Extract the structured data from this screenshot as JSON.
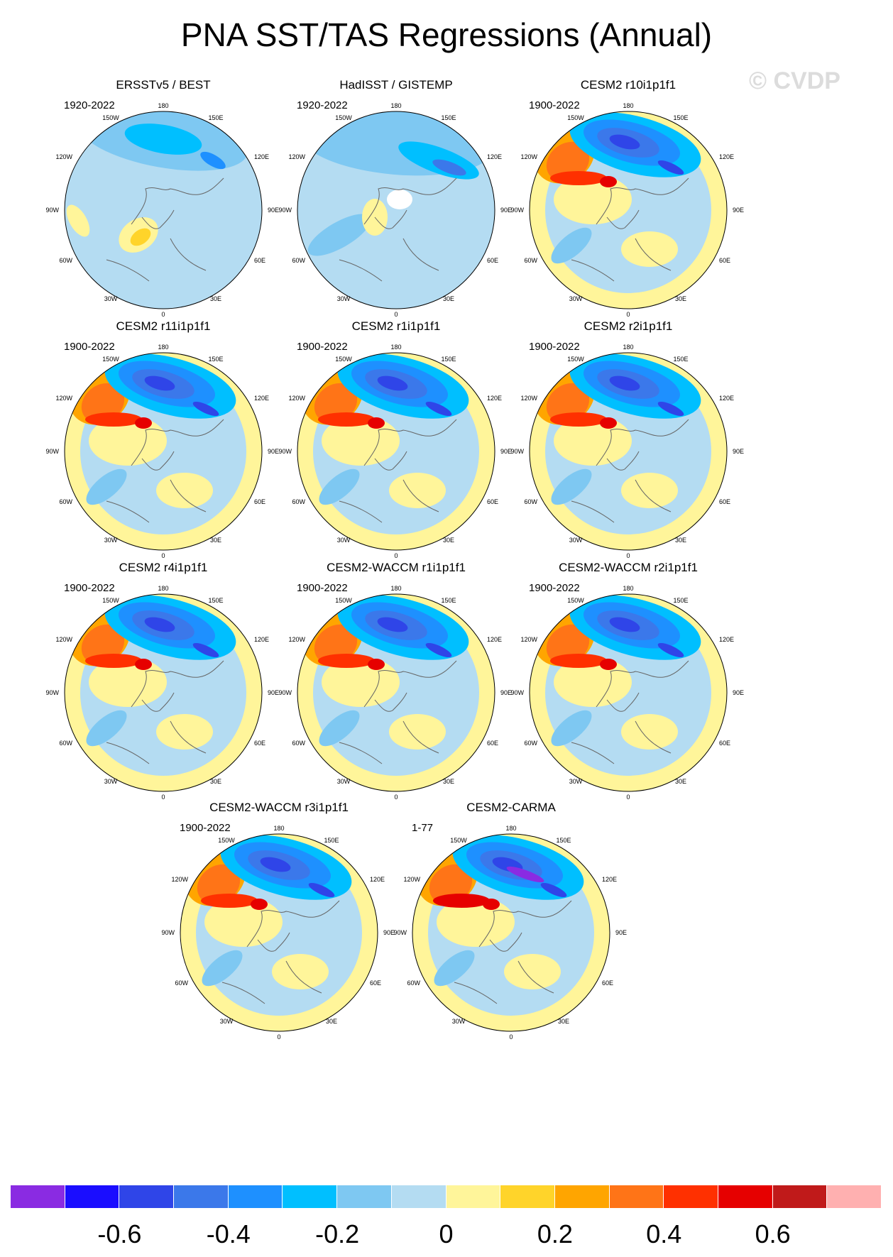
{
  "title": "PNA SST/TAS Regressions (Annual)",
  "watermark": "© CVDP",
  "lon_labels": [
    "180",
    "150E",
    "120E",
    "90E",
    "60E",
    "30E",
    "0",
    "30W",
    "60W",
    "90W",
    "120W",
    "150W"
  ],
  "panels": [
    {
      "title": "ERSSTv5 / BEST",
      "period": "1920-2022",
      "style": "obs1"
    },
    {
      "title": "HadISST / GISTEMP",
      "period": "1920-2022",
      "style": "obs2"
    },
    {
      "title": "CESM2 r10i1p1f1",
      "period": "1900-2022",
      "style": "model"
    },
    {
      "title": "CESM2 r11i1p1f1",
      "period": "1900-2022",
      "style": "model"
    },
    {
      "title": "CESM2 r1i1p1f1",
      "period": "1900-2022",
      "style": "model"
    },
    {
      "title": "CESM2 r2i1p1f1",
      "period": "1900-2022",
      "style": "model"
    },
    {
      "title": "CESM2 r4i1p1f1",
      "period": "1900-2022",
      "style": "model"
    },
    {
      "title": "CESM2-WACCM r1i1p1f1",
      "period": "1900-2022",
      "style": "model"
    },
    {
      "title": "CESM2-WACCM r2i1p1f1",
      "period": "1900-2022",
      "style": "model"
    },
    {
      "title": "CESM2-WACCM r3i1p1f1",
      "period": "1900-2022",
      "style": "model"
    },
    {
      "title": "CESM2-CARMA",
      "period": "1-77",
      "style": "strong"
    }
  ],
  "colorbar": {
    "colors": [
      "#8a2be2",
      "#1a0dff",
      "#2f45e8",
      "#3b78ea",
      "#1e90ff",
      "#00bfff",
      "#7ec8f2",
      "#b4dcf2",
      "#fff59a",
      "#ffd42a",
      "#ffa500",
      "#ff7417",
      "#ff3000",
      "#e60000",
      "#c01a1a",
      "#ffb0b0"
    ],
    "labels": [
      "-0.6",
      "-0.4",
      "-0.2",
      "0",
      "0.2",
      "0.4",
      "0.6"
    ]
  }
}
